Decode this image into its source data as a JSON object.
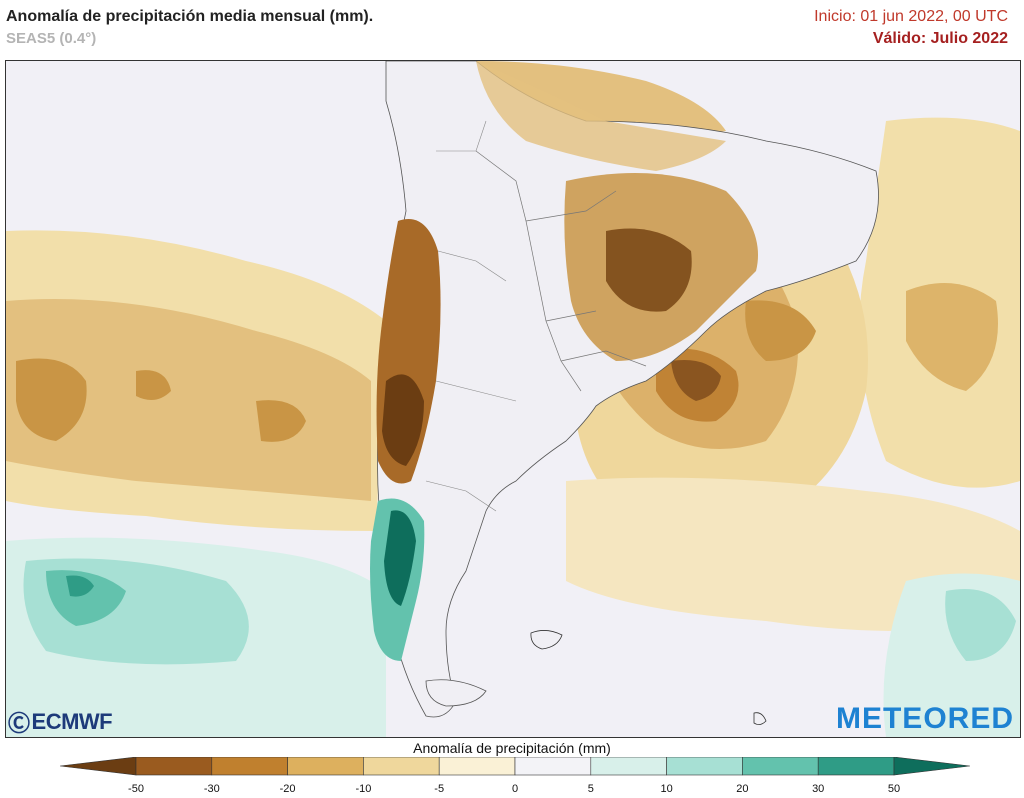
{
  "header": {
    "title": "Anomalía de precipitación media mensual (mm).",
    "model": "SEAS5 (0.4°)",
    "init": "Inicio: 01 jun 2022, 00 UTC",
    "valid": "Válido: Julio 2022"
  },
  "logos": {
    "left": "ECMWF",
    "right": "METEORED"
  },
  "legend": {
    "title": "Anomalía de precipitación (mm)",
    "ticks": [
      "-50",
      "-30",
      "-20",
      "-10",
      "-5",
      "0",
      "5",
      "10",
      "20",
      "30",
      "50"
    ],
    "colors": [
      "#6b3d12",
      "#9a5b1f",
      "#c0802e",
      "#ddb05e",
      "#efd79c",
      "#faf1d6",
      "#f3f3f7",
      "#d8f0ea",
      "#a7e0d4",
      "#63c2ad",
      "#2f9c86",
      "#0e6e5c"
    ]
  }
}
